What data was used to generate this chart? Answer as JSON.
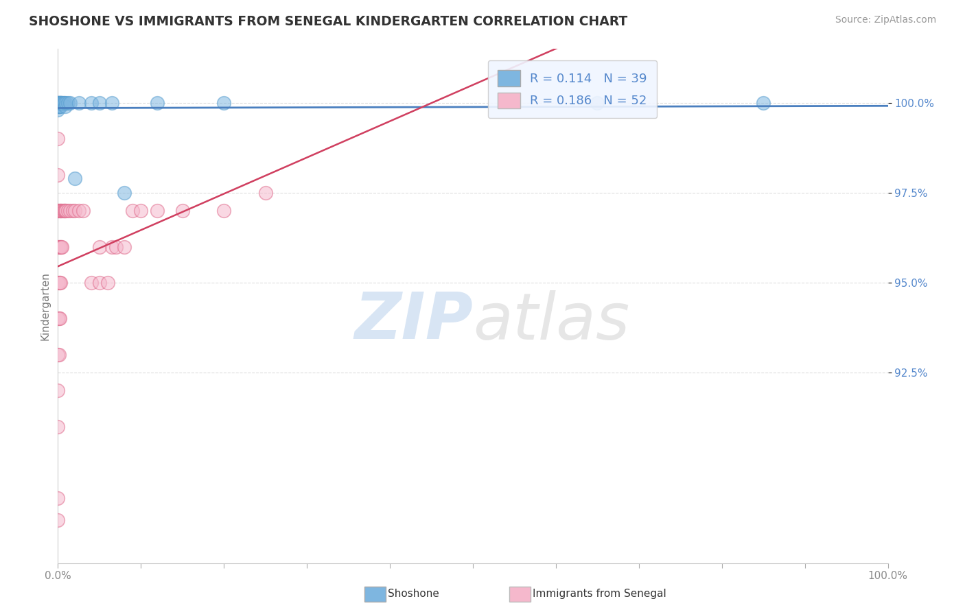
{
  "title": "SHOSHONE VS IMMIGRANTS FROM SENEGAL KINDERGARTEN CORRELATION CHART",
  "source_text": "Source: ZipAtlas.com",
  "ylabel_label": "Kindergarten",
  "r1": 0.114,
  "n1": 39,
  "r2": 0.186,
  "n2": 52,
  "shoshone_color": "#7EB6E0",
  "shoshone_edge": "#5A9FD0",
  "senegal_color": "#F5B8CC",
  "senegal_edge": "#E07090",
  "trend1_color": "#4A7FBF",
  "trend2_color": "#D04060",
  "background_color": "#FFFFFF",
  "watermark_zip": "ZIP",
  "watermark_atlas": "atlas",
  "grid_color": "#DDDDDD",
  "ytick_color": "#5588CC",
  "xtick_color": "#888888",
  "shoshone_x": [
    0.0,
    0.0,
    0.0,
    0.0,
    0.0,
    0.0,
    0.0,
    0.001,
    0.001,
    0.001,
    0.001,
    0.001,
    0.002,
    0.002,
    0.002,
    0.003,
    0.003,
    0.003,
    0.004,
    0.004,
    0.005,
    0.005,
    0.006,
    0.007,
    0.008,
    0.009,
    0.01,
    0.012,
    0.015,
    0.02,
    0.025,
    0.04,
    0.05,
    0.065,
    0.08,
    0.12,
    0.2,
    0.65,
    0.85
  ],
  "shoshone_y": [
    1.0,
    1.0,
    1.0,
    1.0,
    0.999,
    0.999,
    0.998,
    1.0,
    1.0,
    1.0,
    0.999,
    0.999,
    1.0,
    1.0,
    0.999,
    1.0,
    1.0,
    0.999,
    1.0,
    1.0,
    1.0,
    1.0,
    1.0,
    1.0,
    1.0,
    0.999,
    1.0,
    1.0,
    1.0,
    0.979,
    1.0,
    1.0,
    1.0,
    1.0,
    0.975,
    1.0,
    1.0,
    1.0,
    1.0
  ],
  "senegal_x": [
    0.0,
    0.0,
    0.0,
    0.0,
    0.0,
    0.0,
    0.0,
    0.0,
    0.0,
    0.0,
    0.0,
    0.0,
    0.001,
    0.001,
    0.001,
    0.001,
    0.001,
    0.002,
    0.002,
    0.002,
    0.002,
    0.003,
    0.003,
    0.003,
    0.004,
    0.004,
    0.005,
    0.005,
    0.006,
    0.007,
    0.008,
    0.009,
    0.01,
    0.012,
    0.015,
    0.018,
    0.02,
    0.025,
    0.03,
    0.04,
    0.05,
    0.05,
    0.06,
    0.065,
    0.07,
    0.08,
    0.09,
    0.1,
    0.12,
    0.15,
    0.2,
    0.25
  ],
  "senegal_y": [
    0.884,
    0.89,
    0.91,
    0.92,
    0.93,
    0.94,
    0.95,
    0.96,
    0.97,
    0.97,
    0.98,
    0.99,
    0.93,
    0.94,
    0.95,
    0.96,
    0.97,
    0.94,
    0.95,
    0.96,
    0.97,
    0.95,
    0.96,
    0.97,
    0.96,
    0.97,
    0.96,
    0.97,
    0.97,
    0.97,
    0.97,
    0.97,
    0.97,
    0.97,
    0.97,
    0.97,
    0.97,
    0.97,
    0.97,
    0.95,
    0.95,
    0.96,
    0.95,
    0.96,
    0.96,
    0.96,
    0.97,
    0.97,
    0.97,
    0.97,
    0.97,
    0.975
  ],
  "xmin": 0.0,
  "xmax": 1.0,
  "ymin": 0.872,
  "ymax": 1.015,
  "y_ticks": [
    0.925,
    0.95,
    0.975,
    1.0
  ],
  "y_tick_labels": [
    "92.5%",
    "95.0%",
    "97.5%",
    "100.0%"
  ]
}
